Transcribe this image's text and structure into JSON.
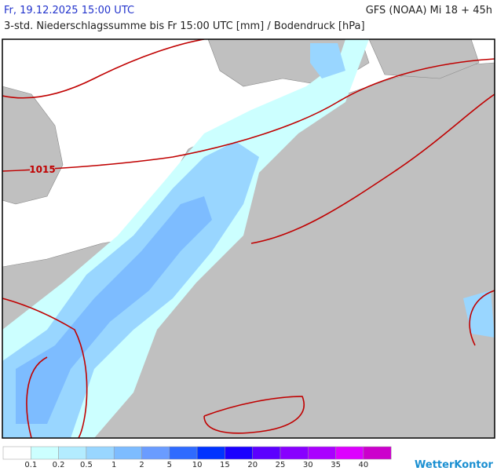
{
  "header": {
    "title": "Fr, 19.12.2025 15:00 UTC",
    "model": "GFS (NOAA) Mi 18 + 45h",
    "subtitle": "3-std. Niederschlagssumme bis Fr 15:00 UTC [mm] / Bodendruck [hPa]"
  },
  "map": {
    "isobar_labels": [
      "1015"
    ]
  },
  "legend": {
    "colors": [
      "#ffffff",
      "#ccffff",
      "#b3ecff",
      "#99d6ff",
      "#7dbcff",
      "#6a9cff",
      "#2f6bff",
      "#0033ff",
      "#1a00ff",
      "#5c00ff",
      "#8800ff",
      "#aa00ff",
      "#dd00ff",
      "#cc00cc"
    ],
    "labels": [
      0.1,
      0.2,
      0.5,
      1,
      2,
      5,
      10,
      15,
      20,
      25,
      30,
      35,
      40
    ]
  },
  "brand": "WetterKontor"
}
